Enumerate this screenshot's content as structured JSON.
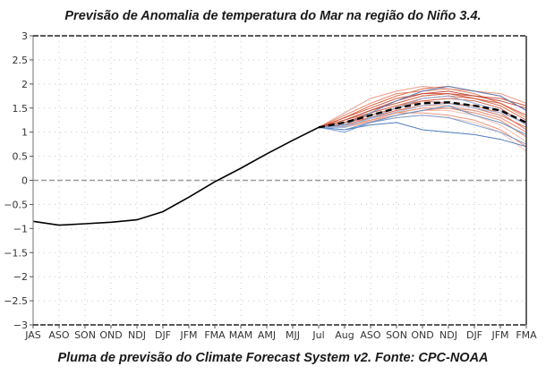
{
  "chart_data": {
    "type": "line",
    "title": "Previsão de Anomalia de temperatura do Mar na região do Niño 3.4.",
    "caption": "Pluma de previsão do Climate Forecast System v2. Fonte: CPC-NOAA",
    "xlabel": "",
    "ylabel": "",
    "categories": [
      "JAS",
      "ASO",
      "SON",
      "OND",
      "NDJ",
      "DJF",
      "JFM",
      "FMA",
      "MAM",
      "AMJ",
      "MJJ",
      "Jul",
      "Aug",
      "ASO",
      "SON",
      "OND",
      "NDJ",
      "DJF",
      "JFM",
      "FMA"
    ],
    "ylim": [
      -3,
      3
    ],
    "yticks": [
      -3,
      -2.5,
      -2,
      -1.5,
      -1,
      -0.5,
      0,
      0.5,
      1,
      1.5,
      2,
      2.5,
      3
    ],
    "ytick_labels": [
      "−3",
      "−2.5",
      "−2",
      "−1.5",
      "−1",
      "−0.5",
      "0",
      "0.5",
      "1",
      "1.5",
      "2",
      "2.5",
      "3"
    ],
    "grid": true,
    "observed": {
      "name": "Observed",
      "color": "#000000",
      "start_index": 0,
      "values": [
        -0.85,
        -0.93,
        -0.9,
        -0.87,
        -0.82,
        -0.65,
        -0.35,
        -0.03,
        0.25,
        0.55,
        0.83,
        1.1
      ]
    },
    "ensemble_mean": {
      "name": "Ensemble mean",
      "color": "#000000",
      "style": "dashed",
      "start_index": 11,
      "values": [
        1.1,
        1.2,
        1.35,
        1.5,
        1.6,
        1.62,
        1.55,
        1.45,
        1.2
      ]
    },
    "members": [
      {
        "color": "#d9542f",
        "values": [
          1.1,
          1.3,
          1.55,
          1.75,
          1.9,
          1.95,
          1.85,
          1.75,
          1.45
        ]
      },
      {
        "color": "#e07a5a",
        "values": [
          1.1,
          1.35,
          1.6,
          1.8,
          1.85,
          1.9,
          1.8,
          1.6,
          1.3
        ]
      },
      {
        "color": "#c0392b",
        "values": [
          1.1,
          1.25,
          1.45,
          1.65,
          1.8,
          1.85,
          1.75,
          1.65,
          1.5
        ]
      },
      {
        "color": "#e8927a",
        "values": [
          1.1,
          1.4,
          1.7,
          1.85,
          1.95,
          1.9,
          1.85,
          1.8,
          1.6
        ]
      },
      {
        "color": "#d35f3c",
        "values": [
          1.1,
          1.2,
          1.4,
          1.55,
          1.7,
          1.75,
          1.7,
          1.55,
          1.25
        ]
      },
      {
        "color": "#f0a38f",
        "values": [
          1.1,
          1.15,
          1.3,
          1.45,
          1.55,
          1.55,
          1.45,
          1.3,
          1.0
        ]
      },
      {
        "color": "#c9503a",
        "values": [
          1.1,
          1.2,
          1.35,
          1.5,
          1.65,
          1.7,
          1.65,
          1.5,
          1.15
        ]
      },
      {
        "color": "#e57c5e",
        "values": [
          1.1,
          1.15,
          1.3,
          1.4,
          1.5,
          1.5,
          1.4,
          1.25,
          0.9
        ]
      },
      {
        "color": "#db6b4c",
        "values": [
          1.1,
          1.25,
          1.4,
          1.55,
          1.65,
          1.6,
          1.55,
          1.4,
          1.05
        ]
      },
      {
        "color": "#f2b5a5",
        "values": [
          1.1,
          1.1,
          1.25,
          1.35,
          1.45,
          1.45,
          1.35,
          1.15,
          0.8
        ]
      },
      {
        "color": "#cf4a2e",
        "values": [
          1.1,
          1.3,
          1.5,
          1.7,
          1.8,
          1.8,
          1.7,
          1.6,
          1.35
        ]
      },
      {
        "color": "#e9886c",
        "values": [
          1.1,
          1.15,
          1.25,
          1.4,
          1.4,
          1.35,
          1.25,
          1.05,
          0.7
        ]
      },
      {
        "color": "#d8644a",
        "values": [
          1.1,
          1.2,
          1.3,
          1.45,
          1.55,
          1.6,
          1.5,
          1.35,
          1.1
        ]
      },
      {
        "color": "#f4c1b3",
        "values": [
          1.1,
          1.1,
          1.2,
          1.3,
          1.35,
          1.3,
          1.2,
          1.0,
          0.6
        ]
      },
      {
        "color": "#c44a30",
        "values": [
          1.1,
          1.25,
          1.45,
          1.6,
          1.75,
          1.8,
          1.75,
          1.7,
          1.55
        ]
      },
      {
        "color": "#e39480",
        "values": [
          1.1,
          1.12,
          1.22,
          1.35,
          1.45,
          1.5,
          1.45,
          1.3,
          1.0
        ]
      },
      {
        "color": "#3a6fb5",
        "values": [
          1.1,
          1.05,
          1.15,
          1.2,
          1.05,
          1.0,
          0.95,
          0.85,
          0.7
        ]
      },
      {
        "color": "#5b8bc7",
        "values": [
          1.1,
          1.05,
          1.2,
          1.35,
          1.45,
          1.55,
          1.35,
          1.2,
          0.95
        ]
      },
      {
        "color": "#4a7bbf",
        "values": [
          1.1,
          1.15,
          1.4,
          1.65,
          1.85,
          1.95,
          1.85,
          1.75,
          1.45
        ]
      },
      {
        "color": "#8aaad6",
        "values": [
          1.1,
          1.1,
          1.3,
          1.5,
          1.7,
          1.75,
          1.6,
          1.45,
          1.15
        ]
      },
      {
        "color": "#6f95cd",
        "values": [
          1.1,
          1.0,
          1.2,
          1.3,
          1.35,
          1.3,
          1.15,
          1.0,
          0.75
        ]
      },
      {
        "color": "#9fb8de",
        "values": [
          1.1,
          1.12,
          1.28,
          1.42,
          1.55,
          1.6,
          1.5,
          1.4,
          1.2
        ]
      }
    ],
    "legend": "none"
  }
}
